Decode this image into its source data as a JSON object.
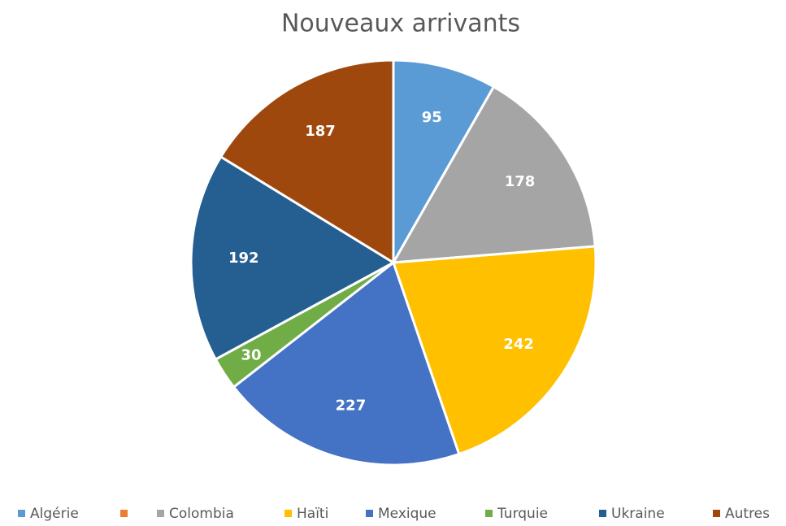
{
  "chart_data": {
    "type": "pie",
    "title": "Nouveaux arrivants",
    "categories": [
      "Algérie",
      null,
      "Colombia",
      "Haïti",
      "Mexique",
      "Turquie",
      "Ukraine",
      "Autres"
    ],
    "values": [
      95,
      0,
      178,
      242,
      227,
      30,
      192,
      187
    ],
    "colors": [
      "#5b9bd5",
      "#ed7d31",
      "#a5a5a5",
      "#ffc000",
      "#4472c4",
      "#70ad47",
      "#255e91",
      "#9e480e"
    ],
    "legend": "bottom"
  }
}
